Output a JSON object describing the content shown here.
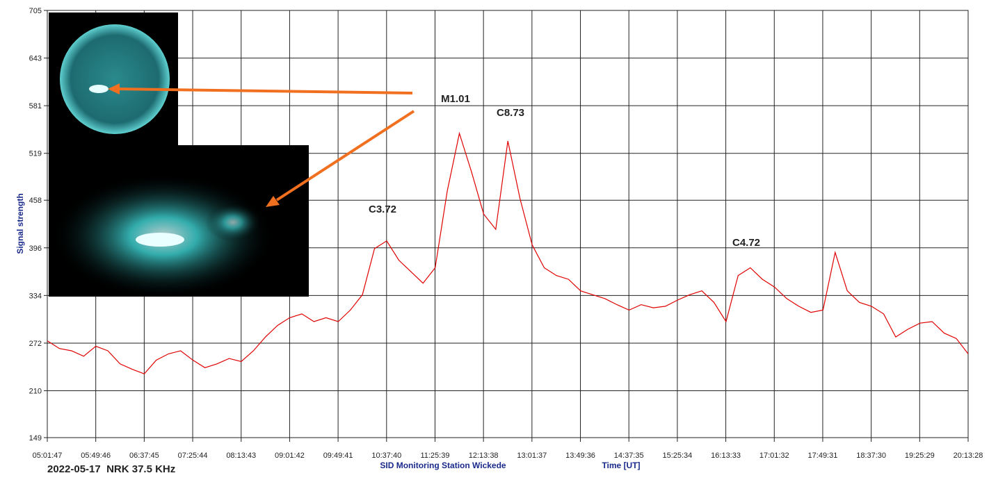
{
  "chart_data": {
    "type": "line",
    "title": "2022-05-17  NRK 37.5 KHz",
    "subtitle": "SID Monitoring Station Wickede",
    "x_label": "Time [UT]",
    "y_label": "Signal strength",
    "color": "#e00000",
    "grid": true,
    "annotations": [
      "M1.01",
      "C8.73",
      "C3.72",
      "C4.72"
    ],
    "x": [
      18107,
      18827,
      19547,
      20267,
      20987,
      21707,
      22427,
      23147,
      23867,
      24587,
      25307,
      26027,
      26747,
      27467,
      28187,
      28907,
      29627,
      30347,
      31067,
      31787,
      32507,
      33227,
      33947,
      34667,
      35387,
      36107,
      36827,
      37547,
      38267,
      38987,
      39707,
      40427,
      41147,
      41867,
      42587,
      43307,
      44027,
      44747,
      45467,
      46187,
      46907,
      47627,
      48347,
      49067,
      49787,
      50507,
      51227,
      51947,
      52667,
      53387,
      54107,
      54827,
      55547,
      56267,
      56987,
      57707,
      58427,
      59147,
      59867,
      60587,
      61307,
      62027,
      62747,
      63467,
      64187,
      64907,
      65627,
      66347,
      67067,
      67787,
      68507,
      69227,
      69947,
      70667,
      71387,
      72107,
      72808
    ],
    "values": [
      275,
      265,
      262,
      255,
      268,
      262,
      245,
      238,
      232,
      250,
      258,
      262,
      250,
      240,
      245,
      252,
      248,
      262,
      280,
      295,
      305,
      310,
      300,
      305,
      300,
      315,
      335,
      395,
      405,
      380,
      365,
      350,
      370,
      470,
      545,
      495,
      440,
      420,
      535,
      460,
      400,
      370,
      360,
      355,
      340,
      335,
      330,
      322,
      315,
      322,
      318,
      320,
      328,
      335,
      340,
      325,
      300,
      360,
      370,
      355,
      345,
      330,
      320,
      312,
      315,
      390,
      340,
      325,
      320,
      310,
      280,
      290,
      298,
      300,
      285,
      278,
      258
    ],
    "xlim": [
      18107,
      72808
    ],
    "xticks": [
      {
        "value": 18107,
        "label": "05:01:47"
      },
      {
        "value": 20986,
        "label": "05:49:46"
      },
      {
        "value": 23865,
        "label": "06:37:45"
      },
      {
        "value": 26744,
        "label": "07:25:44"
      },
      {
        "value": 29623,
        "label": "08:13:43"
      },
      {
        "value": 32502,
        "label": "09:01:42"
      },
      {
        "value": 35381,
        "label": "09:49:41"
      },
      {
        "value": 38260,
        "label": "10:37:40"
      },
      {
        "value": 41139,
        "label": "11:25:39"
      },
      {
        "value": 44018,
        "label": "12:13:38"
      },
      {
        "value": 46897,
        "label": "13:01:37"
      },
      {
        "value": 49776,
        "label": "13:49:36"
      },
      {
        "value": 52655,
        "label": "14:37:35"
      },
      {
        "value": 55534,
        "label": "15:25:34"
      },
      {
        "value": 58413,
        "label": "16:13:33"
      },
      {
        "value": 61292,
        "label": "17:01:32"
      },
      {
        "value": 64171,
        "label": "17:49:31"
      },
      {
        "value": 67050,
        "label": "18:37:30"
      },
      {
        "value": 69929,
        "label": "19:25:29"
      },
      {
        "value": 72808,
        "label": "20:13:28"
      }
    ],
    "ylim": [
      149,
      705
    ],
    "yticks": [
      149,
      210,
      272,
      334,
      396,
      458,
      519,
      581,
      643,
      705
    ]
  }
}
